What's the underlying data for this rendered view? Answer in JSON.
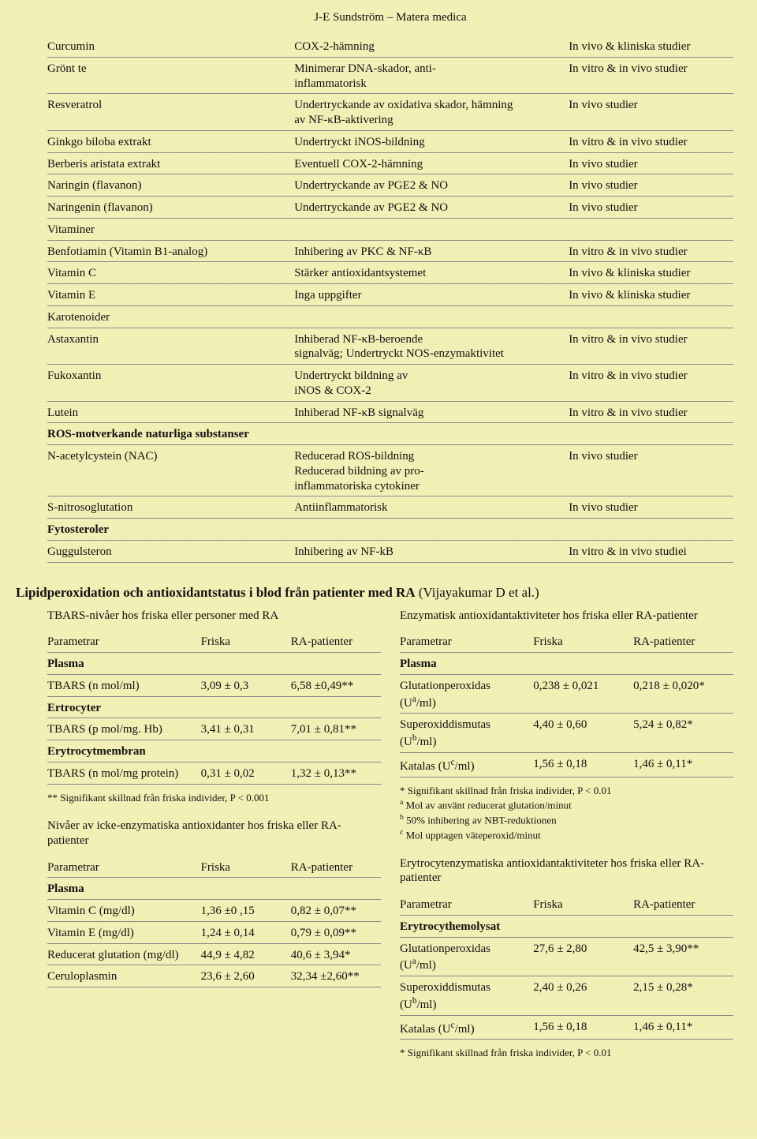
{
  "header": "J-E Sundström – Matera medica",
  "main_rows": [
    {
      "c1": "Curcumin",
      "c2": "COX-2-hämning",
      "c3": "In vivo & kliniska studier"
    },
    {
      "c1": "Grönt te",
      "c2": "Minimerar DNA-skador, anti-\ninflammatorisk",
      "c3": "In vitro & in vivo studier"
    },
    {
      "c1": "Resveratrol",
      "c2": "Undertryckande av oxidativa skador, hämning\nav NF-κB-aktivering",
      "c3": "In vivo studier"
    },
    {
      "c1": "Ginkgo biloba extrakt",
      "c2": "Undertryckt iNOS-bildning",
      "c3": "In vitro & in vivo studier"
    },
    {
      "c1": "Berberis aristata extrakt",
      "c2": "Eventuell COX-2-hämning",
      "c3": "In vivo studier"
    },
    {
      "c1": "Naringin (flavanon)",
      "c2": "Undertryckande av PGE2 & NO",
      "c3": "In vivo studier"
    },
    {
      "c1": "Naringenin (flavanon)",
      "c2": "Undertryckande av PGE2 & NO",
      "c3": "In vivo studier"
    },
    {
      "c1": "Vitaminer",
      "c2": "",
      "c3": ""
    },
    {
      "c1": "Benfotiamin (Vitamin B1-analog)",
      "c2": "Inhibering av PKC & NF-κB",
      "c3": "In vitro & in vivo studier"
    },
    {
      "c1": "Vitamin C",
      "c2": "Stärker antioxidantsystemet",
      "c3": "In vivo & kliniska studier"
    },
    {
      "c1": "Vitamin E",
      "c2": "Inga uppgifter",
      "c3": "In vivo & kliniska studier"
    },
    {
      "c1": "Karotenoider",
      "c2": "",
      "c3": ""
    },
    {
      "c1": "Astaxantin",
      "c2": "Inhiberad NF-κB-beroende\nsignalväg; Undertryckt NOS-enzymaktivitet",
      "c3": "In vitro & in vivo studier"
    },
    {
      "c1": "Fukoxantin",
      "c2": "Undertryckt bildning av\niNOS & COX-2",
      "c3": "In vitro & in vivo studier"
    },
    {
      "c1": "Lutein",
      "c2": "Inhiberad NF-κB signalväg",
      "c3": "In vitro & in vivo studier"
    },
    {
      "c1": "ROS-motverkande naturliga substanser",
      "c2": "",
      "c3": "",
      "bold": true
    },
    {
      "c1": "N-acetylcystein (NAC)",
      "c2": "Reducerad ROS-bildning\nReducerad bildning av pro-\ninflammatoriska cytokiner",
      "c3": "In vivo studier"
    },
    {
      "c1": "S-nitrosoglutation",
      "c2": "Antiinflammatorisk",
      "c3": "In vivo studier"
    },
    {
      "c1": "Fytosteroler",
      "c2": "",
      "c3": "",
      "bold": true
    },
    {
      "c1": "Guggulsteron",
      "c2": "Inhibering av NF-kB",
      "c3": "In vitro & in vivo studiei"
    }
  ],
  "section_title_bold": "Lipidperoxidation och antioxidantstatus i blod från patienter med RA",
  "section_title_ref": " (Vijayakumar D et al.)",
  "col_headers": {
    "param": "Parametrar",
    "healthy": "Friska",
    "ra": "RA-patienter"
  },
  "tbars": {
    "title": "TBARS-nivåer hos friska eller personer med RA",
    "groups": [
      {
        "name": "Plasma",
        "rows": [
          {
            "p": "TBARS (n mol/ml)",
            "h": "3,09 ± 0,3",
            "r": "6,58 ±0,49**"
          }
        ]
      },
      {
        "name": "Ertrocyter",
        "rows": [
          {
            "p": "TBARS (p mol/mg. Hb)",
            "h": "3,41 ± 0,31",
            "r": "7,01 ± 0,81**"
          }
        ]
      },
      {
        "name": "Erytrocytmembran",
        "rows": [
          {
            "p": "TBARS (n mol/mg protein)",
            "h": "0,31 ± 0,02",
            "r": "1,32 ± 0,13**"
          }
        ]
      }
    ],
    "footnote": "** Signifikant skillnad från friska individer, P < 0.001"
  },
  "enzym": {
    "title": "Enzymatisk antioxidantaktiviteter hos friska eller RA-patienter",
    "groups": [
      {
        "name": "Plasma",
        "rows": [
          {
            "p": "Glutationperoxidas (U^a/ml)",
            "h": "0,238 ± 0,021",
            "r": "0,218 ± 0,020*"
          },
          {
            "p": "Superoxiddismutas (U^b/ml)",
            "h": "4,40 ± 0,60",
            "r": "5,24 ± 0,82*"
          },
          {
            "p": "Katalas (U^c/ml)",
            "h": "1,56 ± 0,18",
            "r": "1,46 ± 0,11*"
          }
        ]
      }
    ],
    "footnotes": [
      "* Signifikant skillnad från friska individer, P < 0.01",
      "^a Mol av använt reducerat glutation/minut",
      "^b 50% inhibering av NBT-reduktionen",
      "^c Mol upptagen väteperoxid/minut"
    ]
  },
  "nonenzym": {
    "title": "Nivåer av icke-enzymatiska antioxidanter hos friska eller RA-patienter",
    "groups": [
      {
        "name": "Plasma",
        "rows": [
          {
            "p": "Vitamin C (mg/dl)",
            "h": "1,36 ±0 ,15",
            "r": "0,82 ± 0,07**"
          },
          {
            "p": "Vitamin E (mg/dl)",
            "h": "1,24 ± 0,14",
            "r": "0,79 ± 0,09**"
          },
          {
            "p": "Reducerat glutation (mg/dl)",
            "h": "44,9 ± 4,82",
            "r": "40,6 ± 3,94*"
          },
          {
            "p": "Ceruloplasmin",
            "h": "23,6 ± 2,60",
            "r": "32,34 ±2,60**"
          }
        ]
      }
    ]
  },
  "erytro": {
    "title": "Erytrocytenzymatiska antioxidantaktiviteter hos friska eller RA-patienter",
    "groups": [
      {
        "name": "Erytrocythemolysat",
        "rows": [
          {
            "p": "Glutationperoxidas (U^a/ml)",
            "h": "27,6 ± 2,80",
            "r": "42,5 ± 3,90**"
          },
          {
            "p": "Superoxiddismutas (U^b/ml)",
            "h": "2,40 ± 0,26",
            "r": "2,15 ± 0,28*"
          },
          {
            "p": "Katalas (U^c/ml)",
            "h": "1,56 ± 0,18",
            "r": "1,46 ± 0,11*"
          }
        ]
      }
    ],
    "footnote": "* Signifikant skillnad från friska individer, P < 0.01"
  }
}
